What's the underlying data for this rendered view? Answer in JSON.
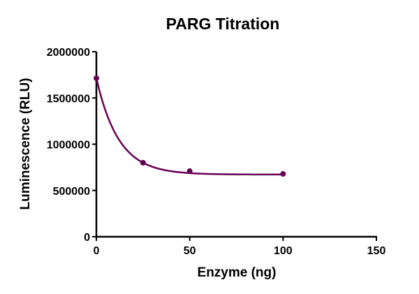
{
  "chart_data": {
    "type": "scatter",
    "title": "PARG Titration",
    "xlabel": "Enzyme (ng)",
    "ylabel": "Luminescence (RLU)",
    "xlim": [
      0,
      150
    ],
    "ylim": [
      0,
      2000000
    ],
    "x_ticks": [
      0,
      50,
      100,
      150
    ],
    "x_tick_labels": [
      "0",
      "50",
      "100",
      "150"
    ],
    "y_ticks": [
      0,
      500000,
      1000000,
      1500000,
      2000000
    ],
    "y_tick_labels": [
      "0",
      "500000",
      "1000000",
      "1500000",
      "2000000"
    ],
    "grid": false,
    "legend": null,
    "series": [
      {
        "name": "PARG",
        "color": "#660052",
        "marker": "circle",
        "fit": "exponential decay curve",
        "x": [
          0,
          25,
          50,
          100
        ],
        "y": [
          1713000,
          800000,
          709000,
          679000
        ]
      }
    ]
  },
  "colors": {
    "series": "#660052",
    "axis": "#000000"
  }
}
